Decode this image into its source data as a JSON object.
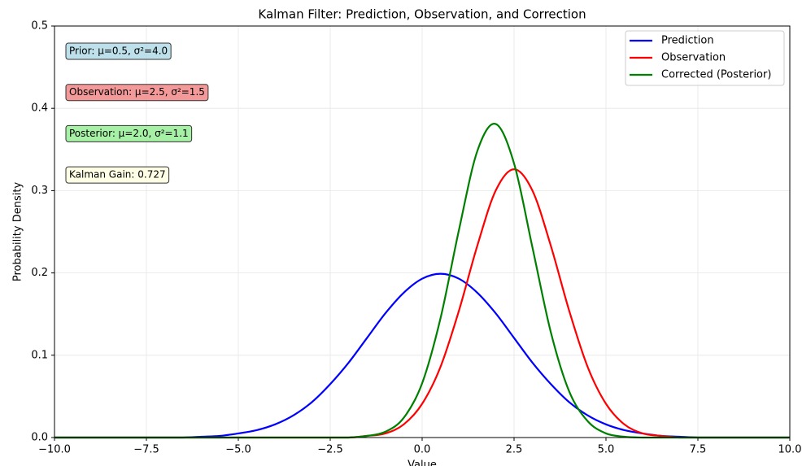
{
  "chart_data": {
    "type": "line",
    "title": "Kalman Filter: Prediction, Observation, and Correction",
    "x_label": "Value",
    "y_label": "Probability Density",
    "x": [
      -10,
      -9.5,
      -9,
      -8.5,
      -8,
      -7.5,
      -7,
      -6.5,
      -6,
      -5.5,
      -5,
      -4.5,
      -4,
      -3.5,
      -3,
      -2.5,
      -2,
      -1.5,
      -1,
      -0.5,
      0,
      0.5,
      1,
      1.5,
      2,
      2.5,
      3,
      3.5,
      4,
      4.5,
      5,
      5.5,
      6,
      6.5,
      7,
      7.5,
      8,
      8.5,
      9,
      9.5,
      10
    ],
    "series": [
      {
        "name": "Prediction",
        "color": "#0000ff",
        "values": [
          0,
          0,
          0,
          0,
          0,
          0,
          0,
          0,
          0.001,
          0.002,
          0.005,
          0.009,
          0.016,
          0.027,
          0.043,
          0.065,
          0.091,
          0.121,
          0.151,
          0.176,
          0.193,
          0.199,
          0.193,
          0.176,
          0.151,
          0.121,
          0.091,
          0.065,
          0.043,
          0.027,
          0.016,
          0.009,
          0.005,
          0.002,
          0.001,
          0,
          0,
          0,
          0,
          0,
          0
        ]
      },
      {
        "name": "Observation",
        "color": "#ff0000",
        "values": [
          0,
          0,
          0,
          0,
          0,
          0,
          0,
          0,
          0,
          0,
          0,
          0,
          0,
          0,
          0,
          0,
          0,
          0.002,
          0.005,
          0.016,
          0.041,
          0.086,
          0.154,
          0.233,
          0.3,
          0.326,
          0.3,
          0.233,
          0.154,
          0.086,
          0.041,
          0.016,
          0.005,
          0.002,
          0,
          0,
          0,
          0,
          0,
          0,
          0
        ]
      },
      {
        "name": "Corrected (Posterior)",
        "color": "#008000",
        "values": [
          0,
          0,
          0,
          0,
          0,
          0,
          0,
          0,
          0,
          0,
          0,
          0,
          0,
          0,
          0,
          0,
          0,
          0.002,
          0.007,
          0.024,
          0.066,
          0.145,
          0.252,
          0.348,
          0.381,
          0.333,
          0.231,
          0.128,
          0.056,
          0.02,
          0.005,
          0.001,
          0,
          0,
          0,
          0,
          0,
          0,
          0,
          0,
          0
        ]
      }
    ],
    "xlim": [
      -10,
      10
    ],
    "xticks": [
      {
        "value": -10,
        "label": "−10.0"
      },
      {
        "value": -7.5,
        "label": "−7.5"
      },
      {
        "value": -5,
        "label": "−5.0"
      },
      {
        "value": -2.5,
        "label": "−2.5"
      },
      {
        "value": 0,
        "label": "0.0"
      },
      2.5,
      {
        "value": 5,
        "label": "5.0"
      },
      7.5,
      {
        "value": 10,
        "label": "10.0"
      }
    ],
    "ylim": [
      0,
      0.5
    ],
    "yticks": [
      {
        "value": 0,
        "label": "0.0"
      },
      0.1,
      0.2,
      0.3,
      0.4,
      0.5
    ],
    "grid": true,
    "legend": "upper right",
    "annotations": [
      {
        "text": "Prior: μ=0.5, σ²=4.0",
        "color": "#add8e6"
      },
      {
        "text": "Observation: μ=2.5, σ²=1.5",
        "color": "#f08080"
      },
      {
        "text": "Posterior: μ=2.0, σ²=1.1",
        "color": "#90ee90"
      },
      {
        "text": "Kalman Gain: 0.727",
        "color": "#ffffe0"
      }
    ]
  }
}
